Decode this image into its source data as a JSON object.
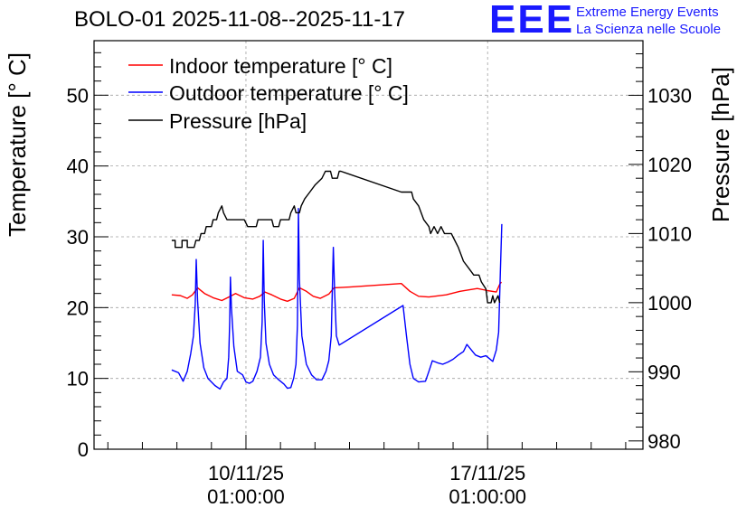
{
  "title": "BOLO-01 2025-11-08--2025-11-17",
  "brand": {
    "logo_text": "EEE",
    "line1": "Extreme Energy Events",
    "line2": "La Scienza nelle Scuole",
    "color": "#1a1aff"
  },
  "chart_data": {
    "type": "line",
    "title": "BOLO-01 2025-11-08--2025-11-17",
    "x_unit": "days since 2025-11-10 01:00",
    "xlim": [
      -4.4,
      11.5
    ],
    "x_ticks": [
      {
        "x": 0,
        "line1": "10/11/25",
        "line2": "01:00:00"
      },
      {
        "x": 7,
        "line1": "17/11/25",
        "line2": "01:00:00"
      }
    ],
    "y_left": {
      "label": "Temperature [° C]",
      "lim": [
        0,
        57.7
      ],
      "ticks": [
        "0",
        "10",
        "20",
        "30",
        "40",
        "50"
      ]
    },
    "y_right": {
      "label": "Pressure [hPa]",
      "lim": [
        978.8,
        1037.9
      ],
      "ticks": [
        "980",
        "990",
        "1000",
        "1010",
        "1020",
        "1030"
      ]
    },
    "grid": true,
    "legend_position": "top-left",
    "series": [
      {
        "name": "Indoor temperature [° C]",
        "color": "#ff0000",
        "axis": "left",
        "points": [
          [
            -2.15,
            21.8
          ],
          [
            -1.9,
            21.7
          ],
          [
            -1.7,
            21.3
          ],
          [
            -1.55,
            21.8
          ],
          [
            -1.4,
            22.8
          ],
          [
            -1.2,
            22.0
          ],
          [
            -0.95,
            21.4
          ],
          [
            -0.7,
            21.0
          ],
          [
            -0.45,
            21.6
          ],
          [
            -0.3,
            22.0
          ],
          [
            -0.05,
            21.4
          ],
          [
            0.2,
            21.2
          ],
          [
            0.4,
            21.6
          ],
          [
            0.55,
            22.2
          ],
          [
            0.75,
            21.8
          ],
          [
            1.0,
            21.2
          ],
          [
            1.2,
            20.9
          ],
          [
            1.4,
            21.3
          ],
          [
            1.55,
            22.8
          ],
          [
            1.75,
            22.3
          ],
          [
            1.95,
            21.6
          ],
          [
            2.15,
            21.3
          ],
          [
            2.4,
            21.9
          ],
          [
            2.55,
            22.8
          ],
          [
            3.0,
            22.9
          ],
          [
            4.5,
            23.4
          ],
          [
            4.75,
            22.3
          ],
          [
            5.0,
            21.6
          ],
          [
            5.3,
            21.5
          ],
          [
            5.8,
            21.8
          ],
          [
            6.2,
            22.3
          ],
          [
            6.7,
            22.7
          ],
          [
            7.0,
            22.4
          ],
          [
            7.25,
            22.2
          ],
          [
            7.35,
            23.3
          ],
          [
            7.4,
            23.6
          ]
        ]
      },
      {
        "name": "Outdoor temperature [° C]",
        "color": "#0000ff",
        "axis": "left",
        "points": [
          [
            -2.15,
            11.2
          ],
          [
            -1.95,
            10.8
          ],
          [
            -1.82,
            9.6
          ],
          [
            -1.7,
            11.0
          ],
          [
            -1.6,
            13.5
          ],
          [
            -1.52,
            16.0
          ],
          [
            -1.47,
            20.5
          ],
          [
            -1.44,
            26.8
          ],
          [
            -1.4,
            21.0
          ],
          [
            -1.33,
            15.0
          ],
          [
            -1.22,
            11.5
          ],
          [
            -1.1,
            10.0
          ],
          [
            -0.9,
            9.0
          ],
          [
            -0.75,
            8.5
          ],
          [
            -0.65,
            9.5
          ],
          [
            -0.55,
            10.0
          ],
          [
            -0.5,
            13.0
          ],
          [
            -0.47,
            18.0
          ],
          [
            -0.45,
            24.3
          ],
          [
            -0.42,
            20.0
          ],
          [
            -0.35,
            14.5
          ],
          [
            -0.25,
            11.0
          ],
          [
            -0.1,
            10.5
          ],
          [
            0.0,
            9.5
          ],
          [
            0.1,
            9.3
          ],
          [
            0.2,
            9.6
          ],
          [
            0.32,
            11.0
          ],
          [
            0.42,
            13.0
          ],
          [
            0.47,
            18.0
          ],
          [
            0.5,
            29.5
          ],
          [
            0.53,
            21.0
          ],
          [
            0.58,
            15.0
          ],
          [
            0.68,
            12.0
          ],
          [
            0.8,
            10.5
          ],
          [
            0.95,
            9.8
          ],
          [
            1.1,
            9.2
          ],
          [
            1.2,
            8.6
          ],
          [
            1.3,
            8.7
          ],
          [
            1.38,
            10.0
          ],
          [
            1.45,
            12.0
          ],
          [
            1.49,
            17.5
          ],
          [
            1.52,
            34.0
          ],
          [
            1.55,
            24.0
          ],
          [
            1.62,
            16.0
          ],
          [
            1.75,
            12.0
          ],
          [
            1.9,
            10.5
          ],
          [
            2.05,
            9.8
          ],
          [
            2.2,
            9.8
          ],
          [
            2.32,
            11.0
          ],
          [
            2.4,
            12.5
          ],
          [
            2.47,
            16.0
          ],
          [
            2.53,
            28.5
          ],
          [
            2.57,
            22.0
          ],
          [
            2.62,
            16.0
          ],
          [
            2.7,
            14.7
          ],
          [
            4.55,
            20.3
          ],
          [
            4.65,
            16.0
          ],
          [
            4.75,
            12.0
          ],
          [
            4.85,
            10.0
          ],
          [
            5.0,
            9.5
          ],
          [
            5.2,
            9.6
          ],
          [
            5.3,
            11.0
          ],
          [
            5.4,
            12.5
          ],
          [
            5.55,
            12.2
          ],
          [
            5.7,
            12.0
          ],
          [
            5.85,
            12.3
          ],
          [
            6.0,
            12.7
          ],
          [
            6.15,
            13.3
          ],
          [
            6.3,
            13.8
          ],
          [
            6.4,
            14.8
          ],
          [
            6.5,
            14.2
          ],
          [
            6.65,
            13.3
          ],
          [
            6.8,
            13.0
          ],
          [
            6.95,
            13.2
          ],
          [
            7.05,
            12.8
          ],
          [
            7.15,
            12.4
          ],
          [
            7.25,
            14.0
          ],
          [
            7.32,
            16.5
          ],
          [
            7.37,
            25.0
          ],
          [
            7.41,
            31.8
          ]
        ]
      },
      {
        "name": "Pressure [hPa]",
        "color": "#000000",
        "axis": "right",
        "points": [
          [
            -2.15,
            1009.0
          ],
          [
            -2.05,
            1009.0
          ],
          [
            -2.05,
            1008.0
          ],
          [
            -1.85,
            1008.0
          ],
          [
            -1.85,
            1009.0
          ],
          [
            -1.7,
            1009.0
          ],
          [
            -1.7,
            1008.0
          ],
          [
            -1.5,
            1008.0
          ],
          [
            -1.45,
            1009.0
          ],
          [
            -1.35,
            1009.0
          ],
          [
            -1.3,
            1010.0
          ],
          [
            -1.2,
            1010.0
          ],
          [
            -1.15,
            1011.0
          ],
          [
            -1.0,
            1011.0
          ],
          [
            -0.95,
            1012.0
          ],
          [
            -0.85,
            1012.0
          ],
          [
            -0.8,
            1013.0
          ],
          [
            -0.7,
            1014.0
          ],
          [
            -0.65,
            1013.0
          ],
          [
            -0.55,
            1012.0
          ],
          [
            -0.05,
            1012.0
          ],
          [
            0.05,
            1011.0
          ],
          [
            0.3,
            1011.0
          ],
          [
            0.35,
            1012.0
          ],
          [
            0.75,
            1012.0
          ],
          [
            0.8,
            1011.0
          ],
          [
            0.95,
            1011.0
          ],
          [
            1.0,
            1012.0
          ],
          [
            1.25,
            1012.0
          ],
          [
            1.3,
            1013.0
          ],
          [
            1.4,
            1014.0
          ],
          [
            1.45,
            1013.0
          ],
          [
            1.55,
            1013.0
          ],
          [
            1.6,
            1014.0
          ],
          [
            1.7,
            1015.0
          ],
          [
            1.85,
            1016.0
          ],
          [
            2.0,
            1017.0
          ],
          [
            2.2,
            1018.0
          ],
          [
            2.3,
            1019.0
          ],
          [
            2.45,
            1019.0
          ],
          [
            2.5,
            1018.0
          ],
          [
            2.65,
            1018.0
          ],
          [
            2.7,
            1019.0
          ],
          [
            2.75,
            1019.0
          ],
          [
            4.5,
            1016.0
          ],
          [
            4.8,
            1016.0
          ],
          [
            4.85,
            1015.0
          ],
          [
            5.0,
            1014.0
          ],
          [
            5.15,
            1012.0
          ],
          [
            5.3,
            1011.0
          ],
          [
            5.35,
            1010.0
          ],
          [
            5.45,
            1011.0
          ],
          [
            5.55,
            1010.0
          ],
          [
            5.65,
            1011.0
          ],
          [
            5.75,
            1010.0
          ],
          [
            5.95,
            1010.0
          ],
          [
            6.05,
            1009.0
          ],
          [
            6.15,
            1008.0
          ],
          [
            6.3,
            1006.0
          ],
          [
            6.45,
            1005.0
          ],
          [
            6.6,
            1004.0
          ],
          [
            6.75,
            1004.0
          ],
          [
            6.82,
            1003.0
          ],
          [
            6.95,
            1002.0
          ],
          [
            7.0,
            1000.0
          ],
          [
            7.1,
            1000.0
          ],
          [
            7.15,
            1001.0
          ],
          [
            7.2,
            1000.0
          ],
          [
            7.3,
            1001.0
          ],
          [
            7.35,
            1000.0
          ]
        ]
      }
    ]
  }
}
